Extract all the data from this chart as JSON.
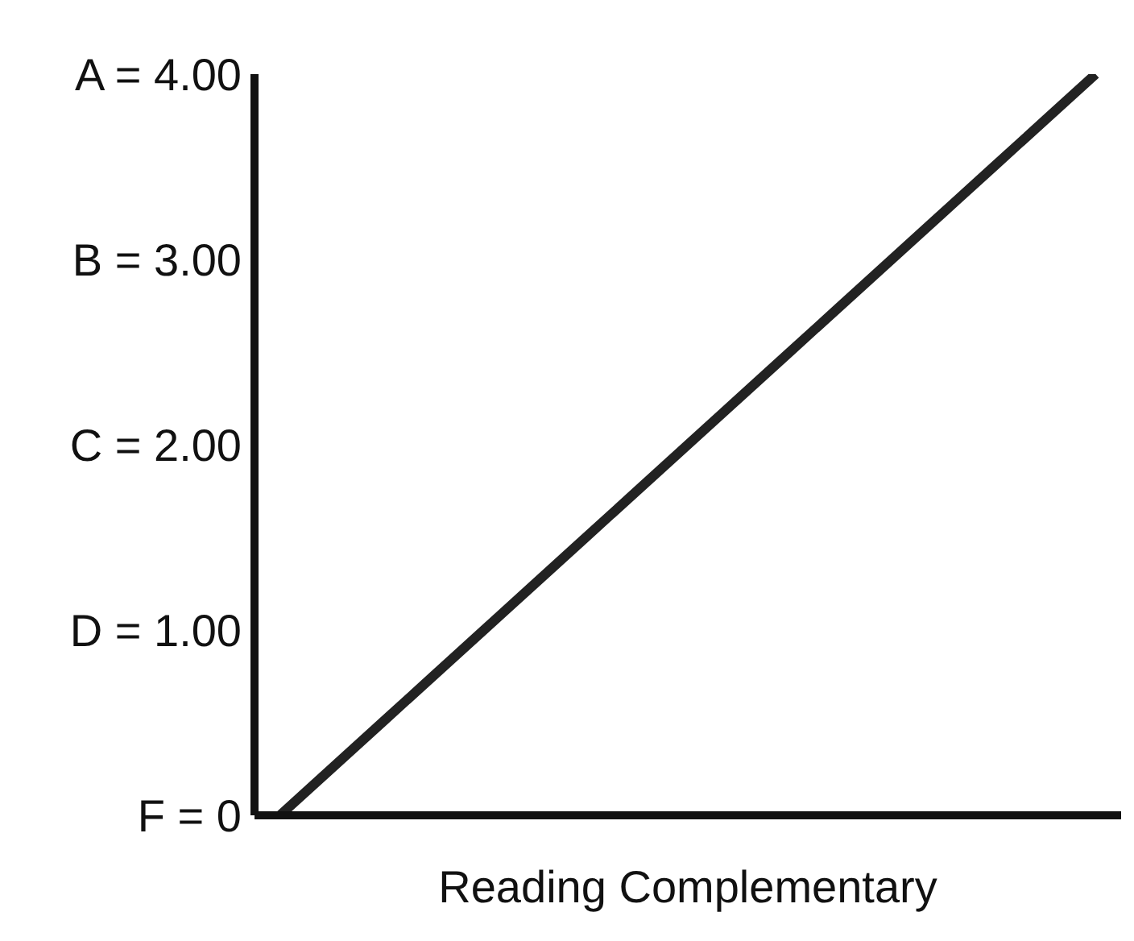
{
  "chart_data": {
    "type": "line",
    "xlabel": "Reading Complementary",
    "categories": [
      null,
      null,
      null,
      null,
      null,
      null,
      null,
      null,
      null,
      null,
      null,
      null,
      null,
      null,
      null,
      null,
      null
    ],
    "series": [
      {
        "color": "#222222",
        "values": [
          0,
          0.25,
          0.5,
          0.75,
          1,
          1.25,
          1.5,
          1.75,
          2,
          2.25,
          2.5,
          2.75,
          3,
          3.25,
          3.5,
          3.75,
          4
        ]
      }
    ],
    "ylim": [
      0,
      4
    ],
    "yticks": [
      {
        "value": 0,
        "label": "F = 0"
      },
      {
        "value": 1,
        "label": "D = 1.00"
      },
      {
        "value": 2,
        "label": "C = 2.00"
      },
      {
        "value": 3,
        "label": "B = 3.00"
      },
      {
        "value": 4,
        "label": "A = 4.00"
      }
    ],
    "grid": false,
    "legend": false,
    "marker": "none",
    "line_style": "solid",
    "tick_labels": "y"
  }
}
